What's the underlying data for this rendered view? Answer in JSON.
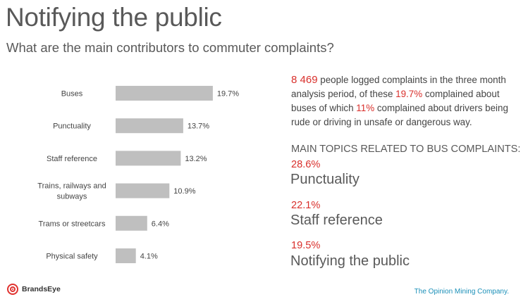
{
  "header": {
    "title": "Notifying the public",
    "subtitle": "What are the main contributors to commuter complaints?"
  },
  "chart_data": {
    "type": "bar",
    "orientation": "horizontal",
    "categories": [
      [
        "Buses"
      ],
      [
        "Punctuality"
      ],
      [
        "Staff reference"
      ],
      [
        "Trains, railways and",
        "subways"
      ],
      [
        "Trams or streetcars"
      ],
      [
        "Physical safety"
      ]
    ],
    "values": [
      19.7,
      13.7,
      13.2,
      10.9,
      6.4,
      4.1
    ],
    "value_labels": [
      "19.7%",
      "13.7%",
      "13.2%",
      "10.9%",
      "6.4%",
      "4.1%"
    ],
    "bar_color": "#bfbfbf",
    "xlim": [
      0,
      25
    ],
    "grid": false,
    "legend": "none"
  },
  "summary": {
    "count": "8 469",
    "text_1": " people logged complaints in the three month analysis period, of these ",
    "pct_buses": "19.7%",
    "text_2": " complained about buses of which ",
    "pct_drivers": "11%",
    "text_3": " complained about drivers being rude or driving in unsafe or dangerous way."
  },
  "topics": {
    "heading": "MAIN TOPICS RELATED TO BUS COMPLAINTS:",
    "items": [
      {
        "pct": "28.6%",
        "label": "Punctuality"
      },
      {
        "pct": "22.1%",
        "label": "Staff reference"
      },
      {
        "pct": "19.5%",
        "label": "Notifying the public"
      }
    ]
  },
  "footer": {
    "brand": "BrandsEye",
    "tagline": "The Opinion Mining Company."
  },
  "colors": {
    "accent_red": "#d9302c",
    "tagline_blue": "#1a8fb8",
    "text_gray": "#595959"
  }
}
